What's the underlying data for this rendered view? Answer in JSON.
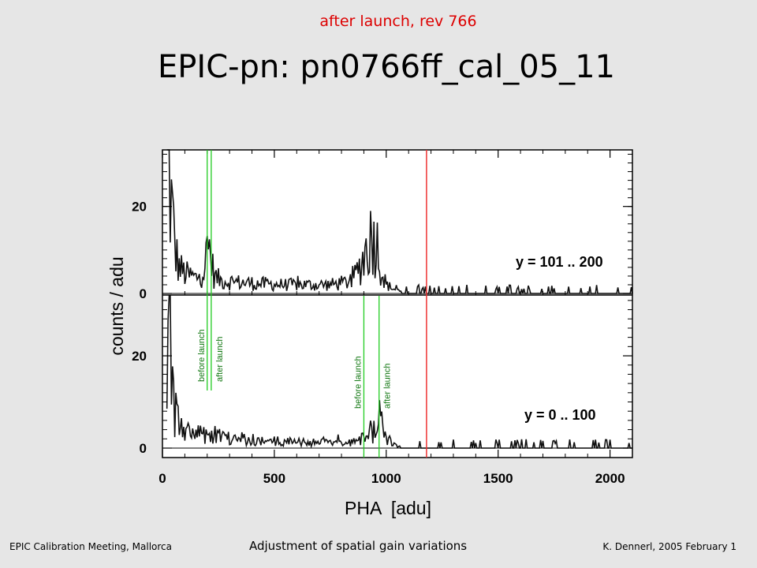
{
  "slide": {
    "subtitle": "after launch, rev 766",
    "title": "EPIC-pn: pn0766ff_cal_05_11",
    "footer_left": "EPIC Calibration Meeting, Mallorca",
    "footer_center": "Adjustment of spatial gain variations",
    "footer_right": "K. Dennerl, 2005 February 1"
  },
  "chart_data": {
    "type": "line",
    "xlabel": "PHA  [adu]",
    "ylabel": "counts / adu",
    "xlim": [
      0,
      2100
    ],
    "x_ticks": [
      0,
      500,
      1000,
      1500,
      2000
    ],
    "x_tick_labels": [
      "0",
      "500",
      "1000",
      "1500",
      "2000"
    ],
    "red_marker_x": 1180,
    "panels": [
      {
        "label": "y = 101 .. 200",
        "ylim": [
          0,
          33
        ],
        "y_ticks": [
          0,
          20
        ],
        "y_tick_labels": [
          "0",
          "20"
        ],
        "profile": [
          [
            20,
            35
          ],
          [
            30,
            26
          ],
          [
            40,
            20
          ],
          [
            50,
            14
          ],
          [
            60,
            9
          ],
          [
            75,
            6
          ],
          [
            100,
            4.5
          ],
          [
            150,
            3.5
          ],
          [
            190,
            6
          ],
          [
            205,
            11
          ],
          [
            215,
            9
          ],
          [
            230,
            4
          ],
          [
            260,
            3
          ],
          [
            350,
            2.5
          ],
          [
            450,
            2.2
          ],
          [
            550,
            2
          ],
          [
            650,
            2
          ],
          [
            750,
            2
          ],
          [
            820,
            2.5
          ],
          [
            860,
            4
          ],
          [
            890,
            7
          ],
          [
            915,
            11
          ],
          [
            935,
            13
          ],
          [
            950,
            13
          ],
          [
            965,
            10
          ],
          [
            980,
            5
          ],
          [
            1000,
            2
          ],
          [
            1050,
            0.6
          ],
          [
            1100,
            0.3
          ],
          [
            1200,
            0.2
          ],
          [
            1500,
            0.15
          ],
          [
            2100,
            0.1
          ]
        ],
        "lines": [
          {
            "label": "before launch",
            "x": 200,
            "color": "#22cc22"
          },
          {
            "label": "after launch",
            "x": 218,
            "color": "#22cc22"
          }
        ]
      },
      {
        "label": "y = 0 .. 100",
        "ylim": [
          0,
          33
        ],
        "y_ticks": [
          0,
          20
        ],
        "y_tick_labels": [
          "0",
          "20"
        ],
        "profile": [
          [
            20,
            33
          ],
          [
            30,
            24
          ],
          [
            40,
            17
          ],
          [
            50,
            11
          ],
          [
            60,
            7
          ],
          [
            75,
            5
          ],
          [
            100,
            3.5
          ],
          [
            150,
            3
          ],
          [
            200,
            3
          ],
          [
            230,
            2.8
          ],
          [
            300,
            2.2
          ],
          [
            400,
            1.8
          ],
          [
            500,
            1.5
          ],
          [
            600,
            1.3
          ],
          [
            700,
            1.2
          ],
          [
            800,
            1.2
          ],
          [
            880,
            1.5
          ],
          [
            920,
            3
          ],
          [
            950,
            4.5
          ],
          [
            970,
            6
          ],
          [
            985,
            4.5
          ],
          [
            1000,
            2
          ],
          [
            1050,
            0.6
          ],
          [
            1100,
            0.2
          ],
          [
            1200,
            0.1
          ],
          [
            2100,
            0.05
          ]
        ],
        "lines": [
          {
            "label": "before launch",
            "x": 900,
            "color": "#22cc22"
          },
          {
            "label": "after launch",
            "x": 968,
            "color": "#22cc22"
          }
        ]
      }
    ]
  }
}
